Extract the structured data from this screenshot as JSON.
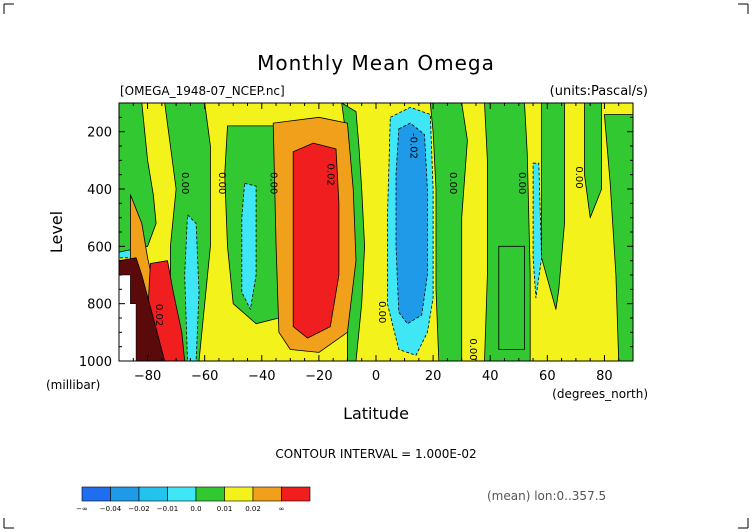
{
  "chart_data": {
    "type": "heatmap",
    "title": "Monthly Mean Omega",
    "file_label": "[OMEGA_1948-07_NCEP.nc]",
    "units_label": "(units:Pascal/s)",
    "xlabel": "Latitude",
    "x_units": "(degrees_north)",
    "ylabel": "Level",
    "y_units": "(millibar)",
    "xlim": [
      -90,
      90
    ],
    "ylim": [
      1000,
      100
    ],
    "x_ticks": [
      -80,
      -60,
      -40,
      -20,
      0,
      20,
      40,
      60,
      80
    ],
    "y_ticks": [
      200,
      400,
      600,
      800,
      1000
    ],
    "contour_interval_text": "CONTOUR INTERVAL = 1.000E-02",
    "mean_note": "(mean) lon:0..357.5",
    "colorbar": {
      "labels": [
        "-∞",
        "-0.04",
        "-0.02",
        "-0.01",
        "0.0",
        "0.01",
        "0.02",
        "∞"
      ],
      "colors": [
        "#1f6ef0",
        "#1e9ae8",
        "#22c4ee",
        "#3fe6f5",
        "#32c832",
        "#f3f31b",
        "#f0a01a",
        "#f01e1e"
      ]
    },
    "contour_labels": [
      {
        "text": "0.00",
        "lat": -68,
        "lev": 380
      },
      {
        "text": "0.00",
        "lat": -55,
        "lev": 380
      },
      {
        "text": "0.00",
        "lat": -37,
        "lev": 380
      },
      {
        "text": "0.02",
        "lat": -17,
        "lev": 350
      },
      {
        "text": "-0.02",
        "lat": 12,
        "lev": 250
      },
      {
        "text": "0.00",
        "lat": 26,
        "lev": 380
      },
      {
        "text": "0.00",
        "lat": 50,
        "lev": 380
      },
      {
        "text": "0.00",
        "lat": 70,
        "lev": 360
      },
      {
        "text": "0.00",
        "lat": 1,
        "lev": 830
      },
      {
        "text": "0.00",
        "lat": 33,
        "lev": 960
      },
      {
        "text": "0.02",
        "lat": -77,
        "lev": 840
      }
    ],
    "regions": [
      {
        "level": 0,
        "points": [
          [
            -90,
            100
          ],
          [
            90,
            100
          ],
          [
            90,
            1000
          ],
          [
            -90,
            1000
          ]
        ]
      },
      {
        "level": -1,
        "points": [
          [
            -90,
            250
          ],
          [
            -86,
            250
          ],
          [
            -86,
            500
          ],
          [
            -84,
            560
          ],
          [
            -82,
            600
          ],
          [
            -84,
            640
          ],
          [
            -90,
            640
          ]
        ]
      },
      {
        "level": 1,
        "points": [
          [
            -90,
            100
          ],
          [
            -82,
            100
          ],
          [
            -80,
            300
          ],
          [
            -78,
            420
          ],
          [
            -77,
            520
          ],
          [
            -80,
            600
          ],
          [
            -90,
            620
          ]
        ]
      },
      {
        "level": 1,
        "points": [
          [
            -74,
            100
          ],
          [
            -60,
            100
          ],
          [
            -58,
            250
          ],
          [
            -58,
            600
          ],
          [
            -60,
            800
          ],
          [
            -62,
            1000
          ],
          [
            -70,
            1000
          ],
          [
            -72,
            800
          ],
          [
            -72,
            600
          ],
          [
            -70,
            400
          ],
          [
            -72,
            250
          ]
        ]
      },
      {
        "level": 1,
        "points": [
          [
            -52,
            180
          ],
          [
            -34,
            180
          ],
          [
            -31,
            400
          ],
          [
            -31,
            700
          ],
          [
            -34,
            850
          ],
          [
            -42,
            870
          ],
          [
            -50,
            800
          ],
          [
            -52,
            600
          ],
          [
            -53,
            350
          ]
        ]
      },
      {
        "level": 1,
        "points": [
          [
            -12,
            100
          ],
          [
            -7,
            130
          ],
          [
            -6,
            250
          ],
          [
            -5,
            400
          ],
          [
            -4,
            600
          ],
          [
            -5,
            800
          ],
          [
            -7,
            1000
          ],
          [
            -10,
            1000
          ],
          [
            -10,
            600
          ],
          [
            -10,
            250
          ]
        ]
      },
      {
        "level": 1,
        "points": [
          [
            19,
            100
          ],
          [
            30,
            100
          ],
          [
            32,
            230
          ],
          [
            30,
            500
          ],
          [
            30,
            850
          ],
          [
            30,
            1000
          ],
          [
            22,
            1000
          ],
          [
            21,
            750
          ],
          [
            21,
            400
          ],
          [
            20,
            200
          ]
        ]
      },
      {
        "level": 1,
        "points": [
          [
            38,
            100
          ],
          [
            52,
            100
          ],
          [
            53,
            280
          ],
          [
            54,
            700
          ],
          [
            54,
            1000
          ],
          [
            38,
            1000
          ],
          [
            39,
            700
          ],
          [
            39,
            300
          ]
        ]
      },
      {
        "level": 1,
        "points": [
          [
            43,
            600
          ],
          [
            52,
            600
          ],
          [
            52,
            960
          ],
          [
            43,
            960
          ]
        ]
      },
      {
        "level": 1,
        "points": [
          [
            58,
            100
          ],
          [
            66,
            100
          ],
          [
            66,
            520
          ],
          [
            64,
            750
          ],
          [
            63,
            820
          ],
          [
            58,
            640
          ],
          [
            58,
            300
          ]
        ]
      },
      {
        "level": 1,
        "points": [
          [
            73,
            100
          ],
          [
            79,
            100
          ],
          [
            79,
            400
          ],
          [
            75,
            500
          ],
          [
            73,
            350
          ]
        ]
      },
      {
        "level": 1,
        "points": [
          [
            80,
            140
          ],
          [
            90,
            140
          ],
          [
            90,
            1000
          ],
          [
            85,
            1000
          ],
          [
            84,
            700
          ],
          [
            82,
            380
          ]
        ]
      },
      {
        "level": 2,
        "points": [
          [
            -86,
            420
          ],
          [
            -82,
            520
          ],
          [
            -80,
            640
          ],
          [
            -76,
            820
          ],
          [
            -72,
            920
          ],
          [
            -70,
            1000
          ],
          [
            -84,
            1000
          ],
          [
            -86,
            760
          ]
        ]
      },
      {
        "level": 2,
        "points": [
          [
            -36,
            170
          ],
          [
            -20,
            150
          ],
          [
            -10,
            170
          ],
          [
            -8,
            400
          ],
          [
            -7,
            650
          ],
          [
            -10,
            900
          ],
          [
            -20,
            970
          ],
          [
            -30,
            960
          ],
          [
            -34,
            900
          ],
          [
            -35,
            600
          ]
        ]
      },
      {
        "level": 3,
        "points": [
          [
            -79,
            660
          ],
          [
            -73,
            650
          ],
          [
            -71,
            760
          ],
          [
            -68,
            900
          ],
          [
            -67,
            1000
          ],
          [
            -79,
            1000
          ],
          [
            -80,
            840
          ]
        ]
      },
      {
        "level": 3,
        "points": [
          [
            -29,
            270
          ],
          [
            -22,
            240
          ],
          [
            -14,
            260
          ],
          [
            -13,
            450
          ],
          [
            -13,
            700
          ],
          [
            -16,
            880
          ],
          [
            -24,
            920
          ],
          [
            -29,
            880
          ]
        ]
      },
      {
        "level": 4,
        "points": [
          [
            -90,
            650
          ],
          [
            -84,
            640
          ],
          [
            -82,
            700
          ],
          [
            -78,
            850
          ],
          [
            -74,
            1000
          ],
          [
            -90,
            1000
          ]
        ]
      },
      {
        "level": -1,
        "points": [
          [
            -66,
            490
          ],
          [
            -63,
            520
          ],
          [
            -62,
            760
          ],
          [
            -63,
            1000
          ],
          [
            -66,
            1000
          ],
          [
            -67,
            700
          ]
        ]
      },
      {
        "level": -1,
        "points": [
          [
            -46,
            380
          ],
          [
            -42,
            390
          ],
          [
            -42,
            700
          ],
          [
            -44,
            820
          ],
          [
            -47,
            760
          ],
          [
            -47,
            500
          ]
        ]
      },
      {
        "level": -1,
        "points": [
          [
            5,
            150
          ],
          [
            12,
            115
          ],
          [
            19,
            140
          ],
          [
            20,
            400
          ],
          [
            20,
            780
          ],
          [
            18,
            900
          ],
          [
            14,
            980
          ],
          [
            8,
            960
          ],
          [
            4,
            800
          ],
          [
            4,
            500
          ]
        ]
      },
      {
        "level": -1,
        "points": [
          [
            55,
            310
          ],
          [
            57,
            310
          ],
          [
            58,
            640
          ],
          [
            56,
            780
          ],
          [
            55,
            640
          ]
        ]
      },
      {
        "level": -2,
        "points": [
          [
            8,
            190
          ],
          [
            12,
            170
          ],
          [
            17,
            210
          ],
          [
            18,
            400
          ],
          [
            18,
            700
          ],
          [
            16,
            840
          ],
          [
            11,
            870
          ],
          [
            8,
            830
          ],
          [
            7,
            600
          ],
          [
            7,
            350
          ]
        ]
      }
    ],
    "white_patch": [
      [
        -90,
        700
      ],
      [
        -86,
        700
      ],
      [
        -86,
        800
      ],
      [
        -84,
        800
      ],
      [
        -84,
        1000
      ],
      [
        -90,
        1000
      ]
    ]
  }
}
